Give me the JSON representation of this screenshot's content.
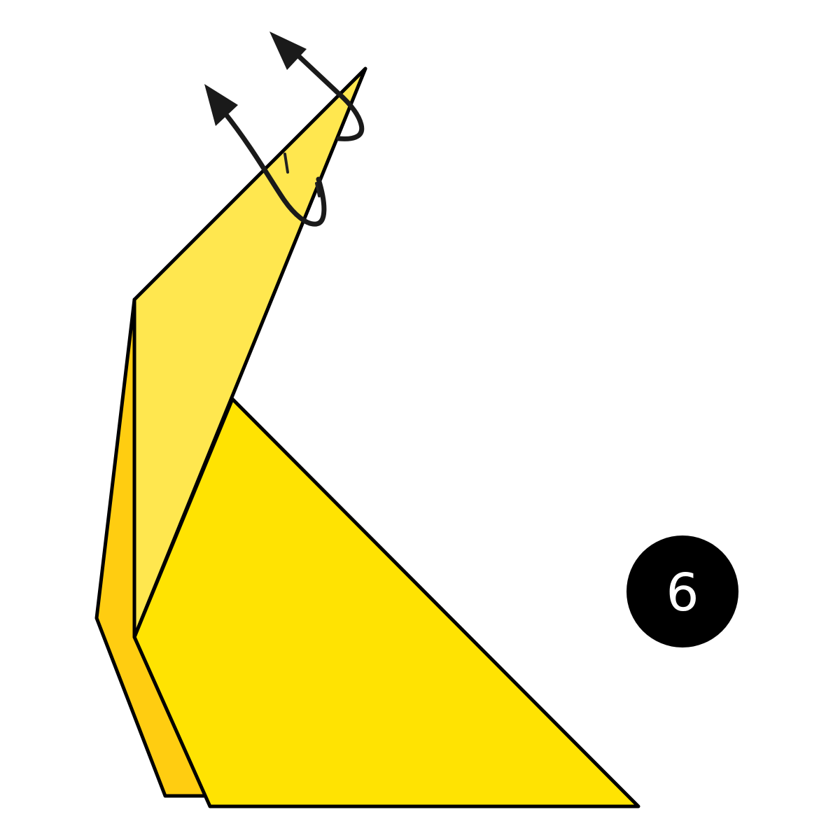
{
  "diagram": {
    "step_number": "6",
    "colors": {
      "background": "#ffffff",
      "paper_front": "#FFE302",
      "paper_light": "#FFE74F",
      "paper_back": "#FFCD11",
      "outline": "#000000",
      "arrow": "#1a1a1a",
      "badge": "#000000",
      "badge_text": "#ffffff"
    },
    "icons": {
      "step_badge": "numbered-circle-icon",
      "fold_arrows": "inside-reverse-fold-arrow-icon"
    }
  }
}
